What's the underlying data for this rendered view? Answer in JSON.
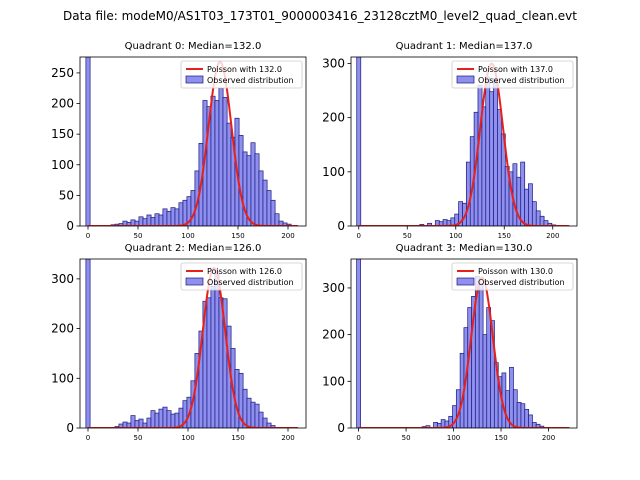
{
  "figure_title": "Data file: modeM0/AS1T03_173T01_9000003416_23128cztM0_level2_quad_clean.evt",
  "colors": {
    "hist_fill": "#7b7bea",
    "hist_edge": "#1a1a80",
    "poisson_line": "#e8201a",
    "axes": "#000000"
  },
  "chart_data": [
    {
      "type": "bar",
      "title": "Quadrant 0: Median=132.0",
      "xlim": [
        -8,
        218
      ],
      "ylim": [
        0,
        276
      ],
      "xticks": [
        0,
        50,
        100,
        150,
        200
      ],
      "yticks": [
        0,
        50,
        100,
        150,
        200,
        250
      ],
      "legend": {
        "position": "upper right",
        "poisson_label": "Poisson with 132.0",
        "hist_label": "Observed distribution"
      },
      "poisson_mean": 132.0,
      "poisson_peak": 268,
      "bin_width": 4.2,
      "bins": [
        {
          "x": 0,
          "y": 276
        },
        {
          "x": 25,
          "y": 2
        },
        {
          "x": 29,
          "y": 3
        },
        {
          "x": 33,
          "y": 4
        },
        {
          "x": 37,
          "y": 8
        },
        {
          "x": 41,
          "y": 6
        },
        {
          "x": 45,
          "y": 10
        },
        {
          "x": 49,
          "y": 8
        },
        {
          "x": 53,
          "y": 15
        },
        {
          "x": 57,
          "y": 12
        },
        {
          "x": 61,
          "y": 18
        },
        {
          "x": 65,
          "y": 14
        },
        {
          "x": 69,
          "y": 20
        },
        {
          "x": 73,
          "y": 18
        },
        {
          "x": 77,
          "y": 28
        },
        {
          "x": 81,
          "y": 24
        },
        {
          "x": 85,
          "y": 30
        },
        {
          "x": 89,
          "y": 28
        },
        {
          "x": 93,
          "y": 38
        },
        {
          "x": 97,
          "y": 42
        },
        {
          "x": 101,
          "y": 48
        },
        {
          "x": 105,
          "y": 58
        },
        {
          "x": 109,
          "y": 90
        },
        {
          "x": 113,
          "y": 135
        },
        {
          "x": 117,
          "y": 205
        },
        {
          "x": 121,
          "y": 195
        },
        {
          "x": 125,
          "y": 212
        },
        {
          "x": 129,
          "y": 205
        },
        {
          "x": 133,
          "y": 225
        },
        {
          "x": 137,
          "y": 210
        },
        {
          "x": 141,
          "y": 168
        },
        {
          "x": 145,
          "y": 145
        },
        {
          "x": 149,
          "y": 176
        },
        {
          "x": 153,
          "y": 148
        },
        {
          "x": 157,
          "y": 121
        },
        {
          "x": 161,
          "y": 115
        },
        {
          "x": 165,
          "y": 136
        },
        {
          "x": 169,
          "y": 118
        },
        {
          "x": 173,
          "y": 90
        },
        {
          "x": 177,
          "y": 75
        },
        {
          "x": 181,
          "y": 58
        },
        {
          "x": 185,
          "y": 42
        },
        {
          "x": 189,
          "y": 20
        },
        {
          "x": 193,
          "y": 8
        },
        {
          "x": 197,
          "y": 5
        },
        {
          "x": 201,
          "y": 3
        }
      ]
    },
    {
      "type": "bar",
      "title": "Quadrant 1: Median=137.0",
      "xlim": [
        -8,
        225
      ],
      "ylim": [
        0,
        312
      ],
      "xticks": [
        0,
        50,
        100,
        150,
        200
      ],
      "yticks": [
        0,
        100,
        200,
        300
      ],
      "legend": {
        "position": "upper right",
        "poisson_label": "Poisson with 137.0",
        "hist_label": "Observed distribution"
      },
      "poisson_mean": 137.0,
      "poisson_peak": 300,
      "bin_width": 4.2,
      "bins": [
        {
          "x": 0,
          "y": 312
        },
        {
          "x": 65,
          "y": 3
        },
        {
          "x": 73,
          "y": 5
        },
        {
          "x": 81,
          "y": 10
        },
        {
          "x": 85,
          "y": 8
        },
        {
          "x": 89,
          "y": 12
        },
        {
          "x": 93,
          "y": 10
        },
        {
          "x": 97,
          "y": 15
        },
        {
          "x": 101,
          "y": 22
        },
        {
          "x": 105,
          "y": 45
        },
        {
          "x": 109,
          "y": 42
        },
        {
          "x": 113,
          "y": 118
        },
        {
          "x": 117,
          "y": 165
        },
        {
          "x": 121,
          "y": 210
        },
        {
          "x": 125,
          "y": 260
        },
        {
          "x": 129,
          "y": 220
        },
        {
          "x": 133,
          "y": 275
        },
        {
          "x": 137,
          "y": 248
        },
        {
          "x": 141,
          "y": 272
        },
        {
          "x": 145,
          "y": 215
        },
        {
          "x": 149,
          "y": 170
        },
        {
          "x": 153,
          "y": 110
        },
        {
          "x": 157,
          "y": 100
        },
        {
          "x": 161,
          "y": 115
        },
        {
          "x": 165,
          "y": 90
        },
        {
          "x": 169,
          "y": 118
        },
        {
          "x": 173,
          "y": 68
        },
        {
          "x": 177,
          "y": 78
        },
        {
          "x": 181,
          "y": 45
        },
        {
          "x": 185,
          "y": 28
        },
        {
          "x": 189,
          "y": 18
        },
        {
          "x": 193,
          "y": 10
        },
        {
          "x": 197,
          "y": 5
        },
        {
          "x": 201,
          "y": 2
        }
      ]
    },
    {
      "type": "bar",
      "title": "Quadrant 2: Median=126.0",
      "xlim": [
        -8,
        218
      ],
      "ylim": [
        0,
        340
      ],
      "xticks": [
        0,
        50,
        100,
        150,
        200
      ],
      "yticks": [
        0,
        100,
        200,
        300
      ],
      "legend": {
        "position": "upper right",
        "poisson_label": "Poisson with 126.0",
        "hist_label": "Observed distribution"
      },
      "poisson_mean": 126.0,
      "poisson_peak": 322,
      "bin_width": 4.2,
      "bins": [
        {
          "x": 0,
          "y": 340
        },
        {
          "x": 29,
          "y": 3
        },
        {
          "x": 33,
          "y": 8
        },
        {
          "x": 37,
          "y": 12
        },
        {
          "x": 41,
          "y": 10
        },
        {
          "x": 45,
          "y": 25
        },
        {
          "x": 49,
          "y": 15
        },
        {
          "x": 53,
          "y": 18
        },
        {
          "x": 57,
          "y": 10
        },
        {
          "x": 61,
          "y": 20
        },
        {
          "x": 65,
          "y": 35
        },
        {
          "x": 69,
          "y": 30
        },
        {
          "x": 73,
          "y": 38
        },
        {
          "x": 77,
          "y": 42
        },
        {
          "x": 81,
          "y": 35
        },
        {
          "x": 85,
          "y": 28
        },
        {
          "x": 89,
          "y": 30
        },
        {
          "x": 93,
          "y": 40
        },
        {
          "x": 97,
          "y": 55
        },
        {
          "x": 101,
          "y": 62
        },
        {
          "x": 105,
          "y": 95
        },
        {
          "x": 109,
          "y": 150
        },
        {
          "x": 113,
          "y": 195
        },
        {
          "x": 117,
          "y": 255
        },
        {
          "x": 121,
          "y": 262
        },
        {
          "x": 125,
          "y": 285
        },
        {
          "x": 129,
          "y": 315
        },
        {
          "x": 133,
          "y": 262
        },
        {
          "x": 137,
          "y": 260
        },
        {
          "x": 141,
          "y": 205
        },
        {
          "x": 145,
          "y": 160
        },
        {
          "x": 149,
          "y": 118
        },
        {
          "x": 153,
          "y": 110
        },
        {
          "x": 157,
          "y": 78
        },
        {
          "x": 161,
          "y": 60
        },
        {
          "x": 165,
          "y": 52
        },
        {
          "x": 169,
          "y": 48
        },
        {
          "x": 173,
          "y": 32
        },
        {
          "x": 177,
          "y": 20
        },
        {
          "x": 181,
          "y": 10
        },
        {
          "x": 185,
          "y": 5
        }
      ]
    },
    {
      "type": "bar",
      "title": "Quadrant 3: Median=130.0",
      "xlim": [
        -8,
        230
      ],
      "ylim": [
        0,
        362
      ],
      "xticks": [
        0,
        50,
        100,
        150,
        200
      ],
      "yticks": [
        0,
        100,
        200,
        300
      ],
      "legend": {
        "position": "upper right",
        "poisson_label": "Poisson with 130.0",
        "hist_label": "Observed distribution"
      },
      "poisson_mean": 130.0,
      "poisson_peak": 322,
      "bin_width": 4.2,
      "bins": [
        {
          "x": 0,
          "y": 362
        },
        {
          "x": 69,
          "y": 3
        },
        {
          "x": 73,
          "y": 5
        },
        {
          "x": 81,
          "y": 12
        },
        {
          "x": 85,
          "y": 10
        },
        {
          "x": 89,
          "y": 18
        },
        {
          "x": 93,
          "y": 15
        },
        {
          "x": 97,
          "y": 25
        },
        {
          "x": 101,
          "y": 48
        },
        {
          "x": 105,
          "y": 82
        },
        {
          "x": 109,
          "y": 160
        },
        {
          "x": 113,
          "y": 215
        },
        {
          "x": 117,
          "y": 258
        },
        {
          "x": 121,
          "y": 282
        },
        {
          "x": 125,
          "y": 325
        },
        {
          "x": 129,
          "y": 310
        },
        {
          "x": 133,
          "y": 200
        },
        {
          "x": 137,
          "y": 258
        },
        {
          "x": 141,
          "y": 230
        },
        {
          "x": 145,
          "y": 140
        },
        {
          "x": 149,
          "y": 110
        },
        {
          "x": 153,
          "y": 118
        },
        {
          "x": 157,
          "y": 80
        },
        {
          "x": 161,
          "y": 130
        },
        {
          "x": 165,
          "y": 82
        },
        {
          "x": 169,
          "y": 55
        },
        {
          "x": 173,
          "y": 52
        },
        {
          "x": 177,
          "y": 40
        },
        {
          "x": 181,
          "y": 28
        },
        {
          "x": 185,
          "y": 12
        },
        {
          "x": 189,
          "y": 8
        },
        {
          "x": 193,
          "y": 4
        }
      ]
    }
  ]
}
